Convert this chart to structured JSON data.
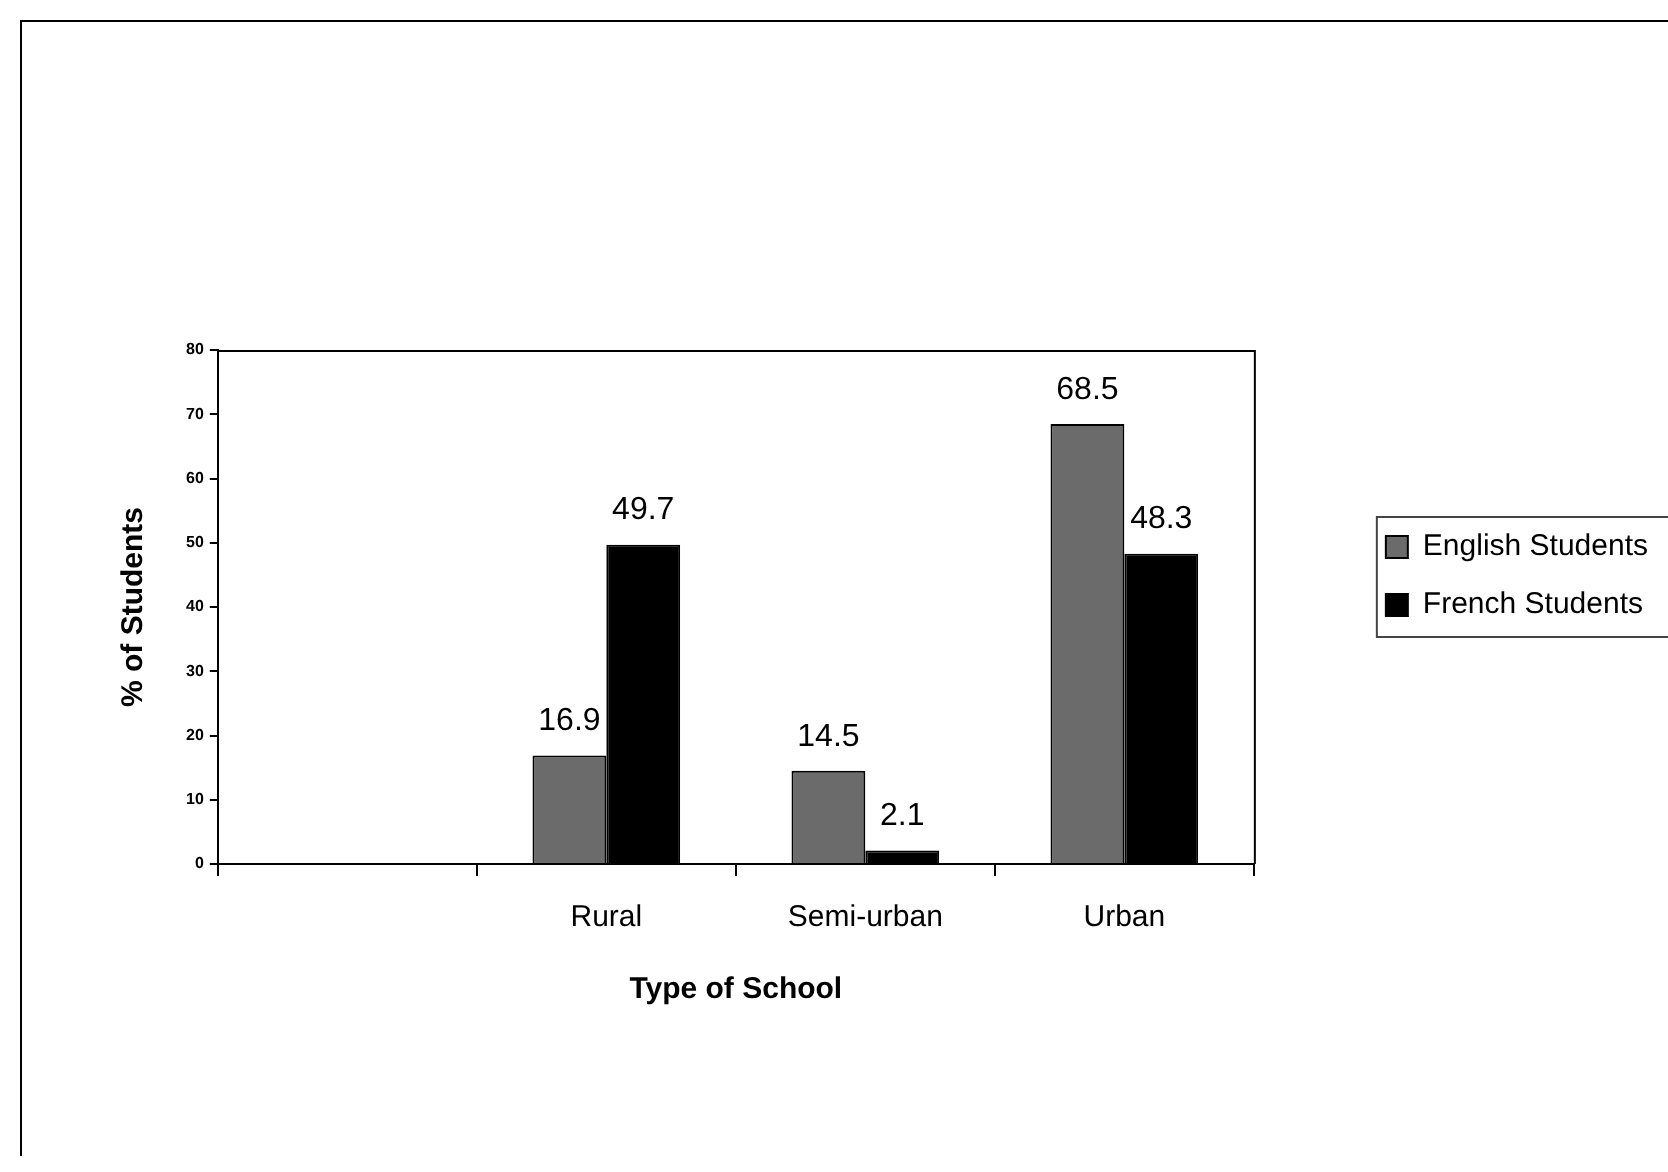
{
  "chart_data": {
    "type": "bar",
    "categories": [
      null,
      "Rural",
      "Semi-urban",
      "Urban"
    ],
    "xlabel": "Type of School",
    "ylabel": "% of Students",
    "series": [
      {
        "name": "English Students",
        "color": "#6b6b6b",
        "values": [
          null,
          16.9,
          14.5,
          68.5
        ]
      },
      {
        "name": "French Students",
        "color": "#000000",
        "values": [
          null,
          49.7,
          2.1,
          48.3
        ]
      }
    ],
    "ylim": [
      0,
      80
    ],
    "yticks": [
      0,
      10,
      20,
      30,
      40,
      50,
      60,
      70,
      80
    ],
    "data_labels": true,
    "legend": "right",
    "grid": false
  }
}
